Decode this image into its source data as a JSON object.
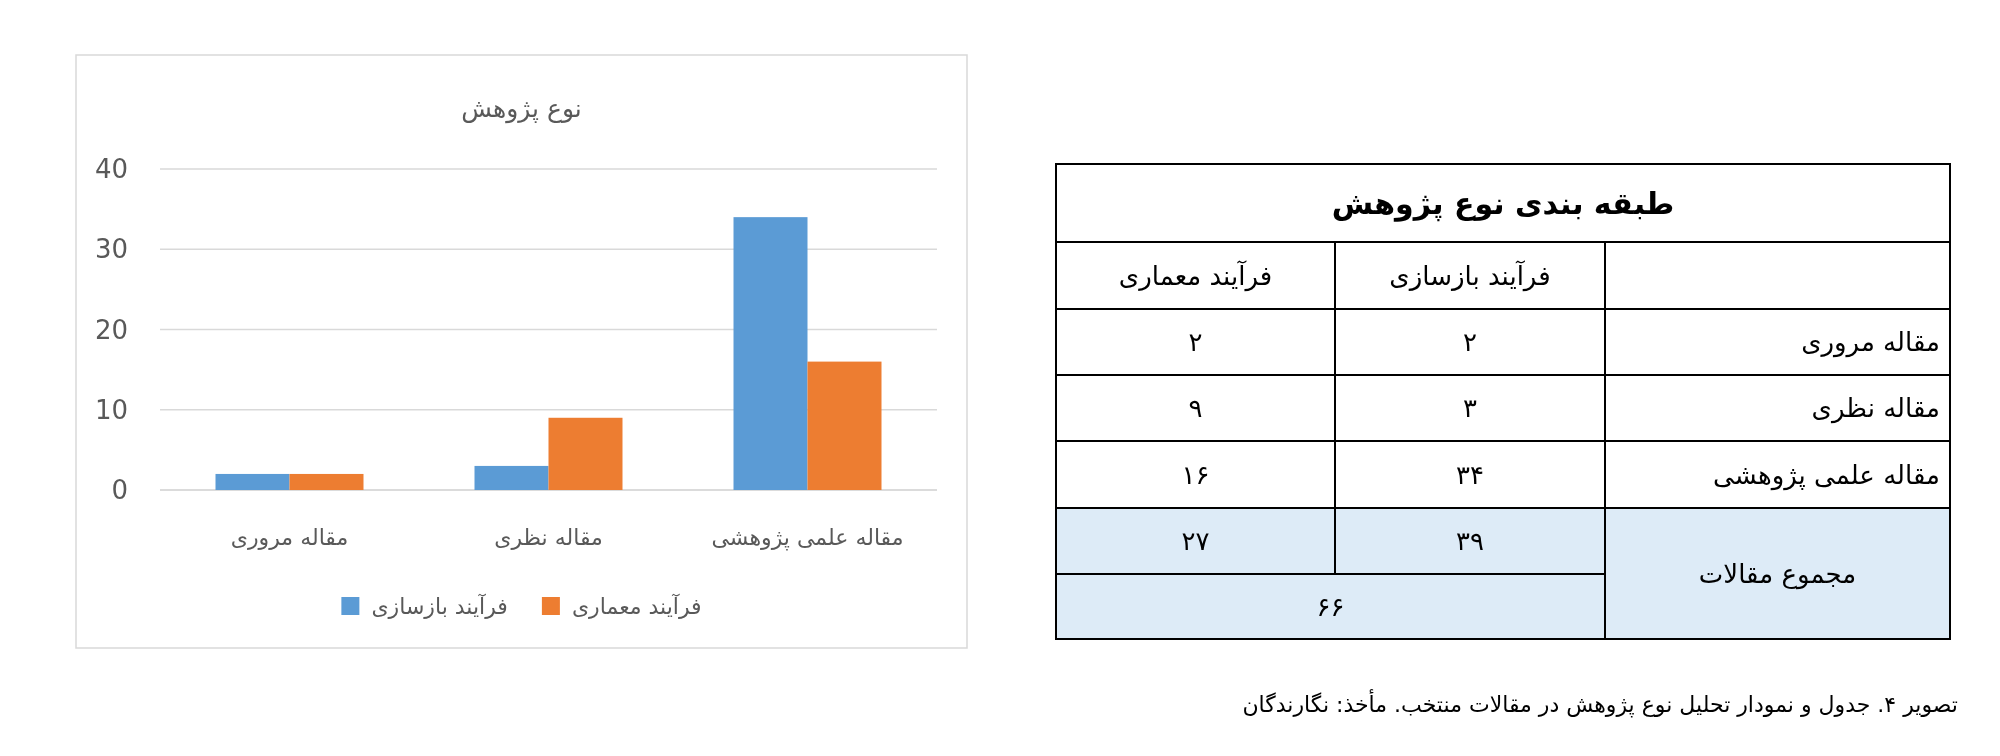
{
  "chart_data": [
    {
      "type": "bar",
      "title": "نوع پژوهش",
      "categories": [
        "مقاله مروری",
        "مقاله نظری",
        "مقاله علمی پژوهشی"
      ],
      "series": [
        {
          "name": "فرآیند بازسازی",
          "color": "#5b9bd5",
          "values": [
            2,
            3,
            34
          ]
        },
        {
          "name": "فرآیند معماری",
          "color": "#ed7d31",
          "values": [
            2,
            9,
            16
          ]
        }
      ],
      "ylim": [
        0,
        40
      ],
      "yticks": [
        0,
        10,
        20,
        30,
        40
      ],
      "grid": "y",
      "legend": "bottom"
    },
    {
      "type": "other",
      "title": "طبقه بندی نوع پژوهش",
      "annotations": [
        "فرآیند بازسازی",
        "فرآیند معماری",
        "مقاله مروری",
        "۲",
        "۲",
        "مقاله نظری",
        "۳",
        "۹",
        "مقاله علمی پژوهشی",
        "۳۴",
        "۱۶",
        "مجموع مقالات",
        "۳۹",
        "۲۷",
        "۶۶",
        "تصویر ۴. جدول و نمودار تحلیل نوع پژوهش در مقالات منتخب. مأخذ: نگارندگان"
      ]
    }
  ]
}
